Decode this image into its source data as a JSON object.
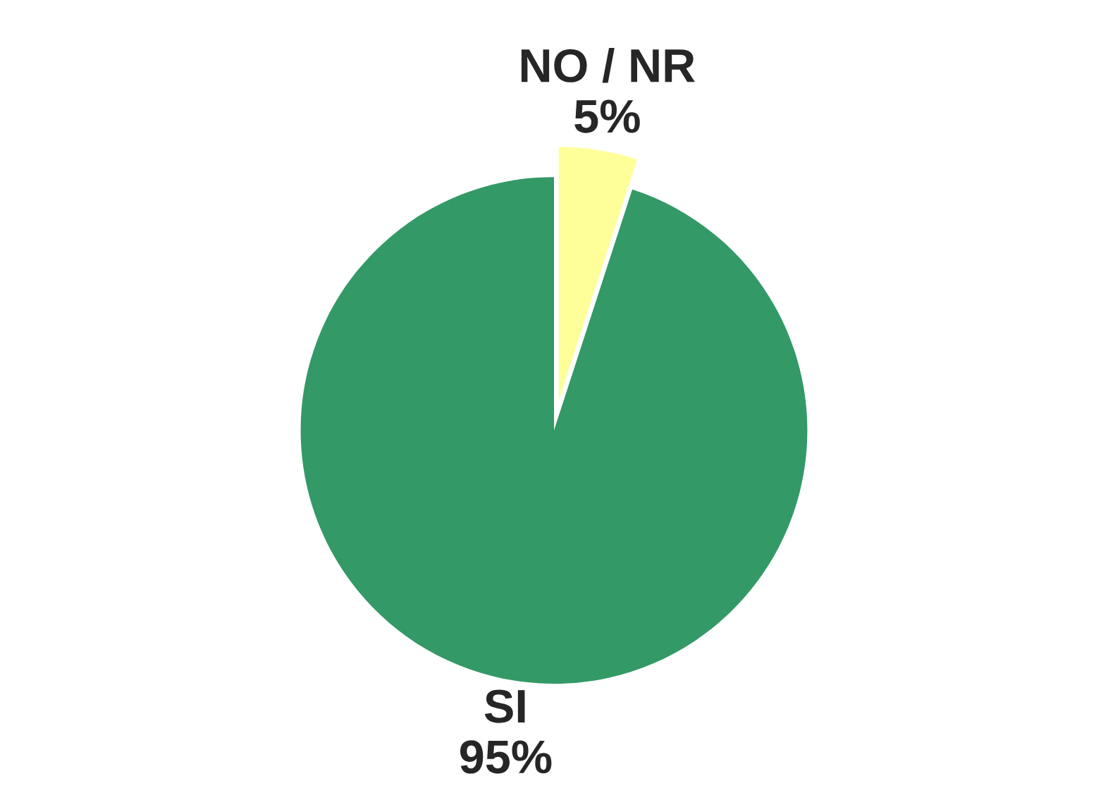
{
  "chart_data": {
    "type": "pie",
    "categories": [
      "NO / NR",
      "SI"
    ],
    "values": [
      5,
      95
    ],
    "value_labels": [
      "5%",
      "95%"
    ],
    "colors": [
      "#ffff99",
      "#339966"
    ]
  }
}
